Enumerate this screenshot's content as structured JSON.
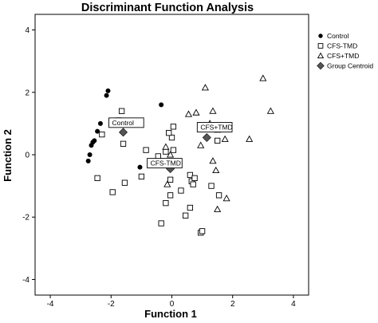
{
  "chart_data": {
    "type": "scatter",
    "title": "Discriminant Function Analysis",
    "xlabel": "Function 1",
    "ylabel": "Function 2",
    "xlim": [
      -4.5,
      4.5
    ],
    "ylim": [
      -4.5,
      4.5
    ],
    "xticks": [
      -4,
      -2,
      0,
      2,
      4
    ],
    "yticks": [
      -4,
      -2,
      0,
      2,
      4
    ],
    "xtick_labels": [
      "-4",
      "-2",
      "0",
      "2",
      "4"
    ],
    "ytick_labels": [
      "-4",
      "-2",
      "0",
      "2",
      "4"
    ],
    "legend_position": "top-right",
    "series": [
      {
        "name": "Control",
        "marker": "filled-circle",
        "points": [
          [
            -2.1,
            2.05
          ],
          [
            -2.15,
            1.9
          ],
          [
            -2.35,
            1.0
          ],
          [
            -2.45,
            0.75
          ],
          [
            -2.55,
            0.45
          ],
          [
            -2.6,
            0.4
          ],
          [
            -2.65,
            0.3
          ],
          [
            -2.7,
            0.0
          ],
          [
            -2.75,
            -0.2
          ],
          [
            -1.05,
            -0.4
          ],
          [
            -0.35,
            1.6
          ]
        ]
      },
      {
        "name": "CFS-TMD",
        "marker": "open-square",
        "points": [
          [
            -1.65,
            1.4
          ],
          [
            -1.75,
            1.1
          ],
          [
            -2.3,
            0.65
          ],
          [
            -1.6,
            0.35
          ],
          [
            -0.85,
            0.15
          ],
          [
            -0.45,
            -0.05
          ],
          [
            -1.0,
            -0.7
          ],
          [
            -1.55,
            -0.9
          ],
          [
            -1.95,
            -1.2
          ],
          [
            -2.45,
            -0.75
          ],
          [
            -0.2,
            0.1
          ],
          [
            0.05,
            0.15
          ],
          [
            0.0,
            0.55
          ],
          [
            -0.1,
            0.7
          ],
          [
            0.05,
            0.9
          ],
          [
            -0.05,
            -0.8
          ],
          [
            -0.2,
            -1.55
          ],
          [
            -0.05,
            -1.3
          ],
          [
            0.3,
            -1.15
          ],
          [
            0.6,
            -0.65
          ],
          [
            0.45,
            -1.95
          ],
          [
            0.6,
            -1.7
          ],
          [
            0.65,
            -0.85
          ],
          [
            0.7,
            -0.95
          ],
          [
            0.75,
            -0.75
          ],
          [
            1.3,
            -1.0
          ],
          [
            1.55,
            -1.3
          ],
          [
            0.95,
            -2.5
          ],
          [
            1.0,
            -2.45
          ],
          [
            -0.35,
            -2.2
          ],
          [
            1.5,
            0.45
          ],
          [
            1.45,
            0.85
          ]
        ]
      },
      {
        "name": "CFS+TMD",
        "marker": "open-triangle",
        "points": [
          [
            1.1,
            2.15
          ],
          [
            1.35,
            1.4
          ],
          [
            3.0,
            2.45
          ],
          [
            3.25,
            1.4
          ],
          [
            0.8,
            1.35
          ],
          [
            0.55,
            1.3
          ],
          [
            1.75,
            0.5
          ],
          [
            2.55,
            0.5
          ],
          [
            1.25,
            1.0
          ],
          [
            0.95,
            0.3
          ],
          [
            1.5,
            0.8
          ],
          [
            1.35,
            -0.2
          ],
          [
            1.45,
            -0.5
          ],
          [
            1.8,
            -1.4
          ],
          [
            1.5,
            -1.75
          ],
          [
            -0.15,
            -0.95
          ],
          [
            -0.2,
            0.25
          ],
          [
            -0.05,
            0.0
          ]
        ]
      },
      {
        "name": "Group Centroid",
        "marker": "filled-diamond",
        "points": [
          [
            -1.6,
            0.72
          ],
          [
            1.15,
            0.55
          ],
          [
            -0.05,
            -0.45
          ]
        ]
      }
    ],
    "annotations": [
      {
        "text": "Control",
        "x": -1.6,
        "y": 0.72
      },
      {
        "text": "CFS+TMD",
        "x": 1.15,
        "y": 0.55
      },
      {
        "text": "CFS-TMD",
        "x": -0.05,
        "y": -0.45
      }
    ],
    "colors": {
      "Control": "#000000",
      "CFS-TMD": "#000000",
      "CFS+TMD": "#000000",
      "Group Centroid": "#555555"
    }
  }
}
